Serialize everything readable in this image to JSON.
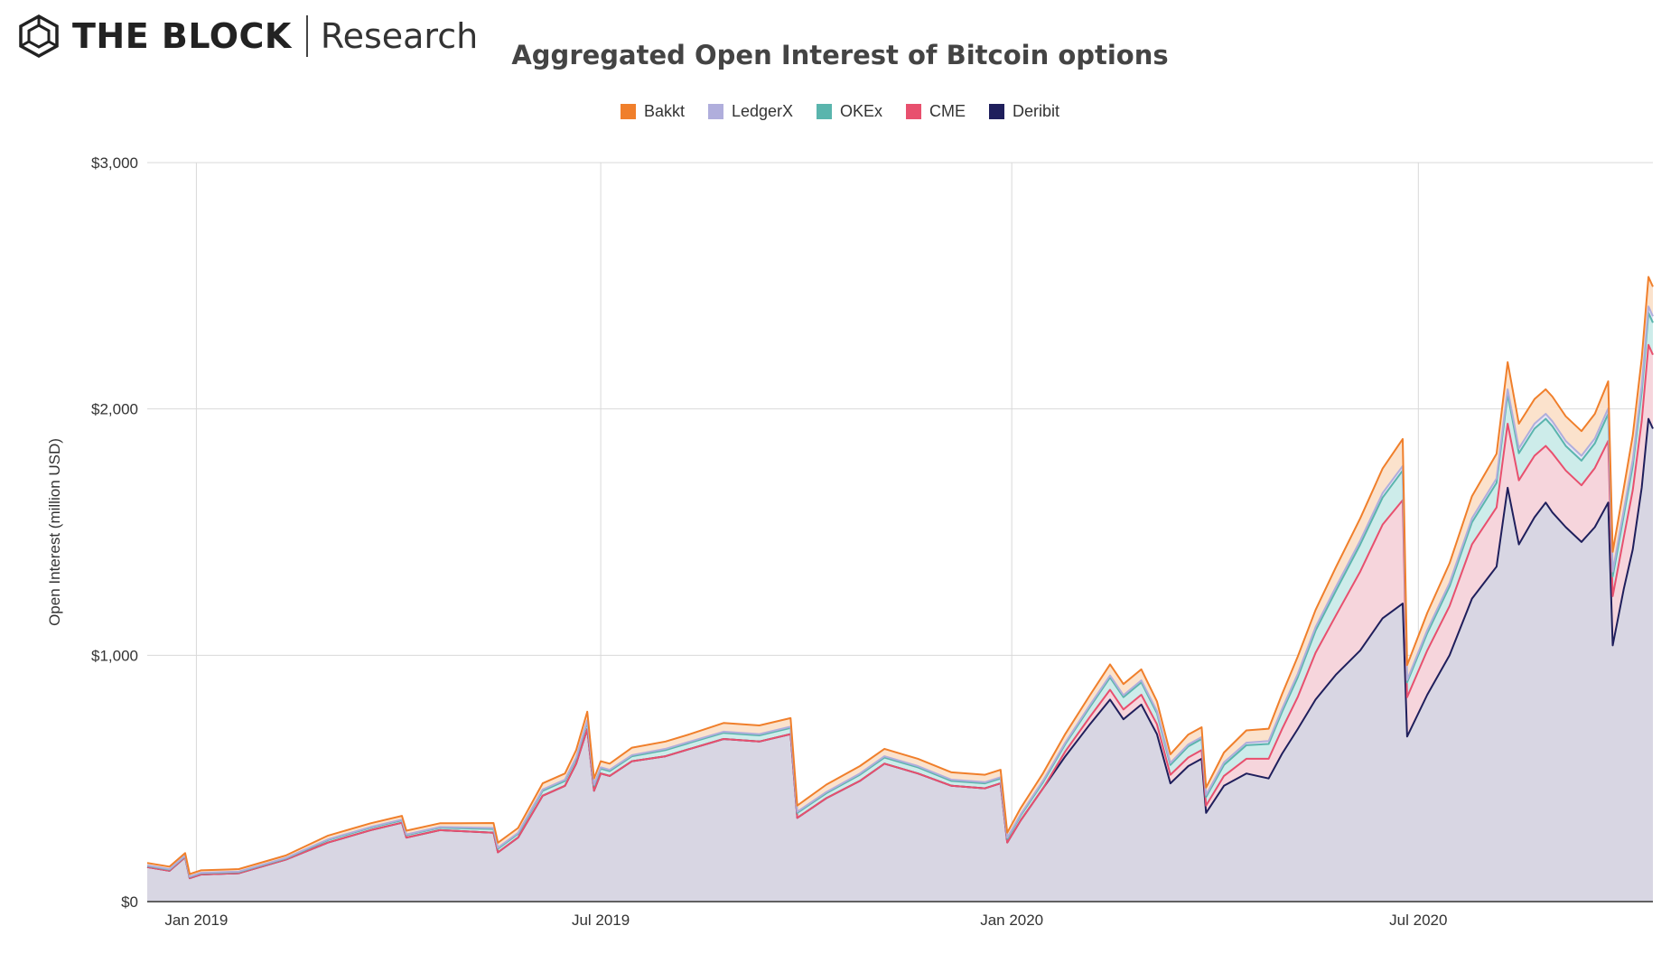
{
  "brand": {
    "name": "THE BLOCK",
    "sub": "Research"
  },
  "chart_data": {
    "type": "area",
    "stacked": true,
    "title": "Aggregated Open Interest of Bitcoin options",
    "xlabel": "",
    "ylabel": "Open Interest (million USD)",
    "ylim": [
      0,
      3000
    ],
    "yticks": [
      0,
      1000,
      2000,
      3000
    ],
    "ytick_labels": [
      "$0",
      "$1,000",
      "$2,000",
      "$3,000"
    ],
    "xticks": [
      "2019-01-01",
      "2019-07-01",
      "2020-01-01",
      "2020-07-01"
    ],
    "xtick_labels": [
      "Jan 2019",
      "Jul 2019",
      "Jan 2020",
      "Jul 2020"
    ],
    "xlim": [
      "2018-12-10",
      "2020-10-14"
    ],
    "grid": true,
    "legend_position": "top-center",
    "x": [
      "2018-12-10",
      "2018-12-20",
      "2018-12-27",
      "2018-12-29",
      "2019-01-03",
      "2019-01-20",
      "2019-02-10",
      "2019-03-01",
      "2019-03-20",
      "2019-04-03",
      "2019-04-05",
      "2019-04-20",
      "2019-05-14",
      "2019-05-16",
      "2019-05-25",
      "2019-06-05",
      "2019-06-15",
      "2019-06-20",
      "2019-06-25",
      "2019-06-28",
      "2019-07-01",
      "2019-07-05",
      "2019-07-15",
      "2019-07-30",
      "2019-08-10",
      "2019-08-25",
      "2019-09-10",
      "2019-09-24",
      "2019-09-27",
      "2019-10-10",
      "2019-10-25",
      "2019-11-05",
      "2019-11-20",
      "2019-12-05",
      "2019-12-20",
      "2019-12-27",
      "2019-12-30",
      "2020-01-05",
      "2020-01-15",
      "2020-01-25",
      "2020-02-05",
      "2020-02-14",
      "2020-02-20",
      "2020-02-28",
      "2020-03-06",
      "2020-03-12",
      "2020-03-20",
      "2020-03-26",
      "2020-03-28",
      "2020-04-05",
      "2020-04-15",
      "2020-04-25",
      "2020-05-01",
      "2020-05-08",
      "2020-05-16",
      "2020-05-25",
      "2020-06-05",
      "2020-06-15",
      "2020-06-24",
      "2020-06-26",
      "2020-07-05",
      "2020-07-15",
      "2020-07-25",
      "2020-08-05",
      "2020-08-10",
      "2020-08-15",
      "2020-08-22",
      "2020-08-27",
      "2020-08-30",
      "2020-09-05",
      "2020-09-12",
      "2020-09-18",
      "2020-09-24",
      "2020-09-26",
      "2020-10-01",
      "2020-10-05",
      "2020-10-09",
      "2020-10-12",
      "2020-10-14"
    ],
    "series": [
      {
        "name": "Deribit",
        "color": "#1f1f5c",
        "values": [
          140,
          125,
          180,
          95,
          110,
          115,
          170,
          240,
          290,
          320,
          260,
          290,
          280,
          200,
          260,
          430,
          470,
          560,
          700,
          450,
          520,
          510,
          570,
          590,
          620,
          660,
          650,
          680,
          340,
          420,
          490,
          560,
          520,
          470,
          460,
          480,
          240,
          330,
          460,
          590,
          720,
          820,
          740,
          800,
          680,
          480,
          550,
          580,
          360,
          470,
          520,
          500,
          600,
          700,
          820,
          920,
          1020,
          1150,
          1210,
          670,
          840,
          1000,
          1230,
          1360,
          1680,
          1450,
          1560,
          1620,
          1580,
          1520,
          1460,
          1520,
          1620,
          1040,
          1270,
          1430,
          1680,
          1960,
          1920
        ]
      },
      {
        "name": "CME",
        "color": "#e8506e",
        "values": [
          0,
          0,
          0,
          0,
          0,
          0,
          0,
          0,
          0,
          0,
          0,
          0,
          0,
          0,
          0,
          0,
          0,
          0,
          0,
          0,
          0,
          0,
          0,
          0,
          0,
          0,
          0,
          0,
          0,
          0,
          0,
          0,
          0,
          0,
          0,
          0,
          0,
          0,
          0,
          20,
          30,
          40,
          40,
          40,
          40,
          35,
          35,
          35,
          30,
          40,
          60,
          80,
          100,
          130,
          190,
          240,
          320,
          380,
          420,
          160,
          180,
          200,
          220,
          240,
          260,
          260,
          250,
          230,
          240,
          230,
          230,
          240,
          250,
          200,
          210,
          240,
          270,
          300,
          300
        ]
      },
      {
        "name": "OKEx",
        "color": "#5ab5ad",
        "values": [
          5,
          5,
          5,
          5,
          5,
          5,
          5,
          10,
          10,
          10,
          10,
          10,
          15,
          15,
          15,
          20,
          20,
          20,
          30,
          20,
          20,
          20,
          20,
          25,
          25,
          25,
          25,
          25,
          20,
          20,
          25,
          25,
          25,
          20,
          20,
          20,
          15,
          20,
          25,
          30,
          40,
          50,
          50,
          50,
          45,
          40,
          45,
          45,
          35,
          45,
          55,
          60,
          70,
          80,
          90,
          100,
          110,
          110,
          120,
          60,
          70,
          80,
          90,
          100,
          120,
          110,
          110,
          110,
          110,
          100,
          100,
          100,
          110,
          80,
          90,
          100,
          120,
          130,
          130
        ]
      },
      {
        "name": "LedgerX",
        "color": "#b0aedc",
        "values": [
          2,
          2,
          2,
          2,
          2,
          2,
          2,
          3,
          3,
          3,
          3,
          3,
          4,
          4,
          4,
          5,
          5,
          5,
          6,
          5,
          5,
          5,
          5,
          5,
          5,
          5,
          5,
          5,
          5,
          5,
          5,
          5,
          5,
          5,
          5,
          5,
          5,
          5,
          6,
          6,
          8,
          8,
          8,
          8,
          8,
          8,
          8,
          8,
          8,
          10,
          10,
          12,
          12,
          14,
          14,
          16,
          16,
          18,
          18,
          10,
          12,
          14,
          16,
          18,
          20,
          20,
          20,
          20,
          20,
          20,
          20,
          20,
          22,
          20,
          20,
          22,
          24,
          26,
          26
        ]
      },
      {
        "name": "Bakkt",
        "color": "#f07f2b",
        "values": [
          10,
          10,
          10,
          10,
          10,
          10,
          10,
          15,
          15,
          15,
          15,
          15,
          20,
          20,
          20,
          25,
          25,
          30,
          35,
          25,
          25,
          25,
          30,
          30,
          30,
          35,
          35,
          35,
          25,
          30,
          30,
          30,
          30,
          30,
          30,
          30,
          20,
          25,
          30,
          35,
          40,
          45,
          45,
          45,
          40,
          35,
          40,
          40,
          30,
          40,
          50,
          50,
          60,
          70,
          70,
          80,
          90,
          100,
          110,
          60,
          70,
          80,
          90,
          100,
          110,
          100,
          100,
          100,
          100,
          100,
          100,
          100,
          110,
          80,
          90,
          100,
          110,
          120,
          120
        ]
      }
    ]
  }
}
